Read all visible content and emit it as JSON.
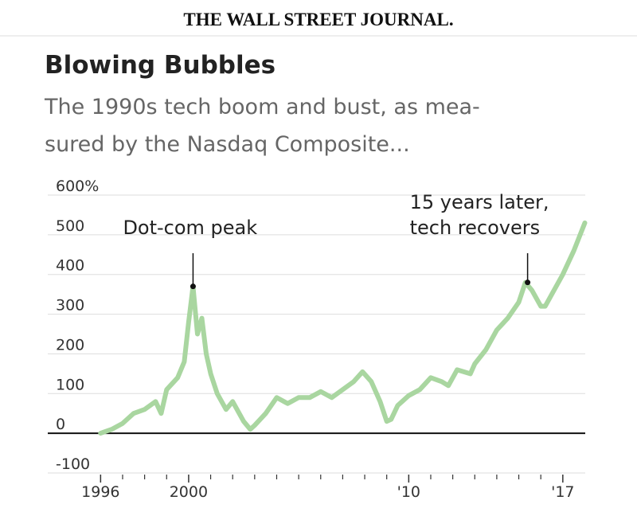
{
  "header": "THE WALL STREET JOURNAL.",
  "chart_data": {
    "type": "line",
    "title": "Blowing Bubbles",
    "subtitle": [
      "The 1990s tech boom and bust, as mea-",
      "sured by the Nasdaq Composite..."
    ],
    "x": [
      1996.0,
      1996.5,
      1997.0,
      1997.5,
      1998.0,
      1998.5,
      1998.75,
      1999.0,
      1999.5,
      1999.8,
      2000.0,
      2000.2,
      2000.4,
      2000.6,
      2000.8,
      2001.0,
      2001.3,
      2001.7,
      2002.0,
      2002.5,
      2002.8,
      2003.0,
      2003.5,
      2004.0,
      2004.5,
      2005.0,
      2005.5,
      2006.0,
      2006.5,
      2007.0,
      2007.5,
      2007.9,
      2008.3,
      2008.7,
      2009.0,
      2009.2,
      2009.5,
      2010.0,
      2010.5,
      2011.0,
      2011.5,
      2011.8,
      2012.2,
      2012.8,
      2013.0,
      2013.5,
      2014.0,
      2014.5,
      2015.0,
      2015.3,
      2015.6,
      2016.0,
      2016.2,
      2016.5,
      2017.0,
      2017.5,
      2018.0
    ],
    "values": [
      0,
      10,
      25,
      50,
      60,
      80,
      50,
      110,
      140,
      180,
      280,
      370,
      250,
      290,
      200,
      150,
      100,
      60,
      80,
      30,
      10,
      20,
      50,
      90,
      75,
      90,
      90,
      105,
      90,
      110,
      130,
      155,
      130,
      80,
      30,
      35,
      70,
      95,
      110,
      140,
      130,
      120,
      160,
      150,
      175,
      210,
      260,
      290,
      330,
      380,
      360,
      320,
      320,
      350,
      400,
      460,
      530
    ],
    "color": "#a9d6a0",
    "xlim": [
      1993.6,
      2018.2
    ],
    "ylim": [
      -100,
      600
    ],
    "yticks": [
      {
        "value": 600,
        "label": "600%"
      },
      500,
      400,
      300,
      200,
      100,
      0,
      -100
    ],
    "xticks": [
      1996,
      2000,
      {
        "value": 2010,
        "label": "'10"
      },
      {
        "value": 2017,
        "label": "'17"
      }
    ],
    "xminorticks": [
      1997,
      1998,
      1999,
      2001,
      2002,
      2003,
      2004,
      2005,
      2006,
      2007,
      2008,
      2009,
      2011,
      2012,
      2013,
      2014,
      2015,
      2016
    ],
    "grid": true,
    "annotations": [
      {
        "lines": [
          "Dot-com peak"
        ],
        "x": 2000.2,
        "y": 370
      },
      {
        "lines": [
          "15 years later,",
          "tech recovers"
        ],
        "x": 2015.4,
        "y": 380
      }
    ]
  }
}
